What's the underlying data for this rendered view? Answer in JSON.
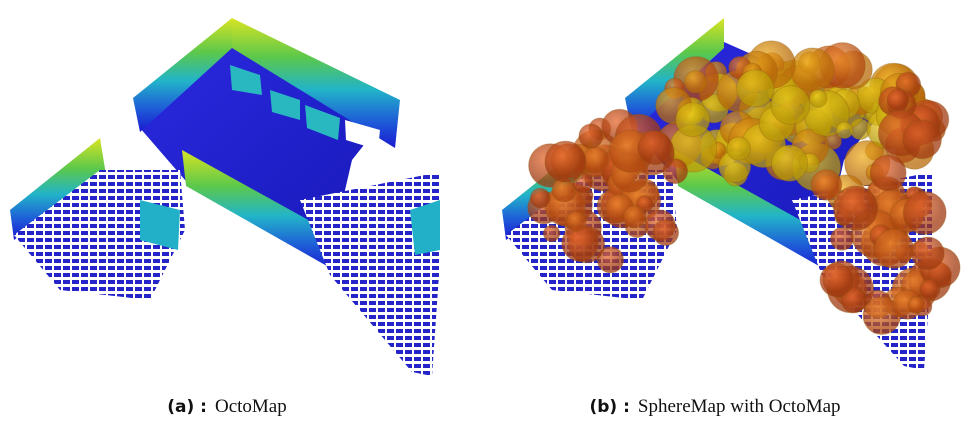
{
  "figures": [
    {
      "label": "(a) :",
      "caption": "OctoMap"
    },
    {
      "label": "(b) :",
      "caption": "SphereMap with OctoMap"
    }
  ]
}
